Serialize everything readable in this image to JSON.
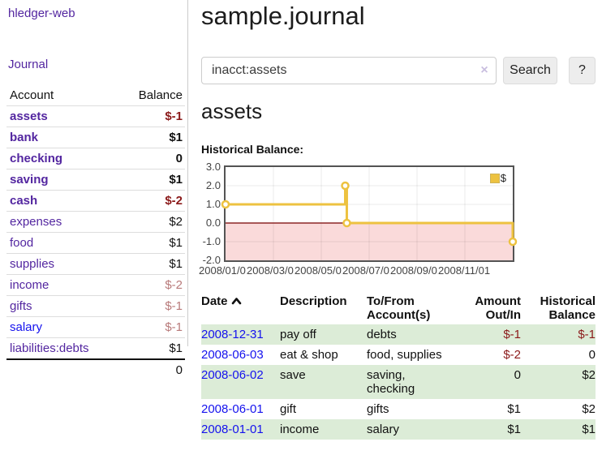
{
  "app": {
    "brand": "hledger-web",
    "nav_journal": "Journal"
  },
  "sidebar": {
    "account_header": "Account",
    "balance_header": "Balance",
    "accounts": [
      {
        "name": "assets",
        "balance": "$-1"
      },
      {
        "name": "bank",
        "balance": "$1"
      },
      {
        "name": "checking",
        "balance": "0"
      },
      {
        "name": "saving",
        "balance": "$1"
      },
      {
        "name": "cash",
        "balance": "$-2"
      },
      {
        "name": "expenses",
        "balance": "$2"
      },
      {
        "name": "food",
        "balance": "$1"
      },
      {
        "name": "supplies",
        "balance": "$1"
      },
      {
        "name": "income",
        "balance": "$-2"
      },
      {
        "name": "gifts",
        "balance": "$-1"
      },
      {
        "name": "salary",
        "balance": "$-1"
      },
      {
        "name": "liabilities:debts",
        "balance": "$1"
      }
    ],
    "total": "0"
  },
  "header": {
    "title": "sample.journal"
  },
  "search": {
    "value": "inacct:assets",
    "clear_icon": "×",
    "button": "Search",
    "help": "?"
  },
  "account_page": {
    "heading": "assets",
    "chart_label": "Historical Balance:"
  },
  "chart_data": {
    "type": "line",
    "title": "Historical Balance",
    "series": [
      {
        "name": "$",
        "color": "#edc240",
        "step": true,
        "points": [
          [
            "2008-01-01",
            1
          ],
          [
            "2008-06-01",
            2
          ],
          [
            "2008-06-03",
            0
          ],
          [
            "2008-12-31",
            -1
          ]
        ]
      }
    ],
    "x_ticks": [
      "2008/01/01",
      "2008/03/01",
      "2008/05/01",
      "2008/07/01",
      "2008/09/01",
      "2008/11/01"
    ],
    "y_ticks": [
      "3.0",
      "2.0",
      "1.0",
      "0.0",
      "-1.0",
      "-2.0"
    ],
    "ylim": [
      -2,
      3
    ],
    "xlim_months": [
      0,
      12
    ],
    "grid": true,
    "negative_region_color": "#fadada",
    "zero_line_color": "#8c2626",
    "legend": {
      "label": "$",
      "position": "top-right"
    }
  },
  "register": {
    "headers": {
      "date": "Date",
      "description": "Description",
      "accounts_l1": "To/From",
      "accounts_l2": "Account(s)",
      "amount_l1": "Amount",
      "amount_l2": "Out/In",
      "balance_l1": "Historical",
      "balance_l2": "Balance"
    },
    "rows": [
      {
        "date": "2008-12-31",
        "description": "pay off",
        "accounts": "debts",
        "amount": "$-1",
        "balance": "$-1"
      },
      {
        "date": "2008-06-03",
        "description": "eat & shop",
        "accounts": "food, supplies",
        "amount": "$-2",
        "balance": "0"
      },
      {
        "date": "2008-06-02",
        "description": "save",
        "accounts": "saving, checking",
        "amount": "0",
        "balance": "$2"
      },
      {
        "date": "2008-06-01",
        "description": "gift",
        "accounts": "gifts",
        "amount": "$1",
        "balance": "$2"
      },
      {
        "date": "2008-01-01",
        "description": "income",
        "accounts": "salary",
        "amount": "$1",
        "balance": "$1"
      }
    ]
  }
}
